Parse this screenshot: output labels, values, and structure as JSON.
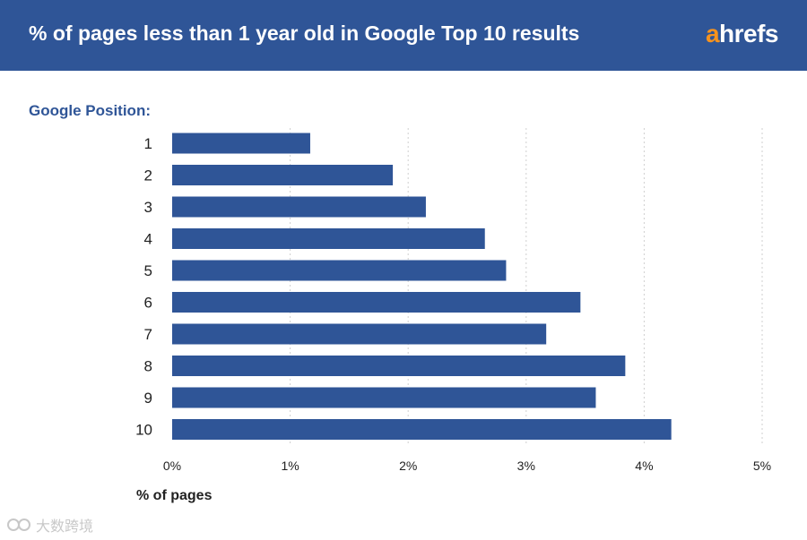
{
  "header": {
    "title": "% of pages less than 1 year old in Google Top 10 results",
    "logo_prefix": "a",
    "logo_suffix": "hrefs"
  },
  "position_label": "Google Position:",
  "watermark": "大数跨境",
  "colors": {
    "header_bg": "#2f5597",
    "bar": "#2f5597",
    "logo_accent": "#f7931e",
    "grid": "#cfcfcf"
  },
  "chart_data": {
    "type": "bar",
    "orientation": "horizontal",
    "categories": [
      "1",
      "2",
      "3",
      "4",
      "5",
      "6",
      "7",
      "8",
      "9",
      "10"
    ],
    "values": [
      1.17,
      1.87,
      2.15,
      2.65,
      2.83,
      3.46,
      3.17,
      3.84,
      3.59,
      4.23
    ],
    "xlabel": "% of pages",
    "ylabel": "Google Position:",
    "xlim": [
      0,
      5
    ],
    "xticks": [
      "0%",
      "1%",
      "2%",
      "3%",
      "4%",
      "5%"
    ],
    "grid": "vertical dotted",
    "legend": "none"
  }
}
